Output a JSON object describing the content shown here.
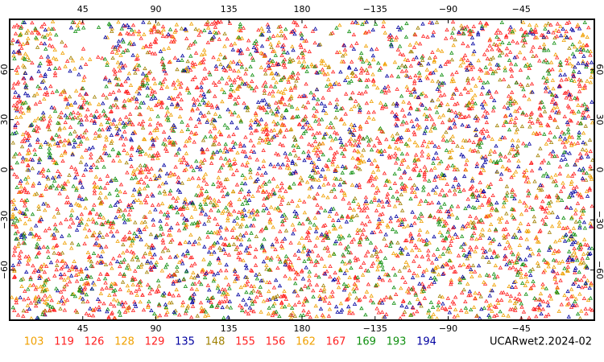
{
  "map": {
    "xlim": [
      0,
      360
    ],
    "ylim": [
      -90,
      90
    ],
    "xticks": [
      45,
      90,
      135,
      180,
      {
        "value": -135,
        "label": "−135"
      },
      {
        "value": -90,
        "label": "−90"
      },
      {
        "value": -45,
        "label": "−45"
      }
    ],
    "yticks": [
      60,
      30,
      0,
      {
        "value": -30,
        "label": "−30"
      },
      {
        "value": -60,
        "label": "−60"
      }
    ],
    "legend": [
      {
        "name": "103",
        "color": "#f0a000"
      },
      {
        "name": "119",
        "color": "#ff2020"
      },
      {
        "name": "126",
        "color": "#ff2020"
      },
      {
        "name": "128",
        "color": "#f0a000"
      },
      {
        "name": "129",
        "color": "#ff2020"
      },
      {
        "name": "135",
        "color": "#0000a0"
      },
      {
        "name": "148",
        "color": "#a08000"
      },
      {
        "name": "155",
        "color": "#ff2020"
      },
      {
        "name": "156",
        "color": "#ff2020"
      },
      {
        "name": "162",
        "color": "#f0a000"
      },
      {
        "name": "167",
        "color": "#ff2020"
      },
      {
        "name": "169",
        "color": "#109010"
      },
      {
        "name": "193",
        "color": "#109010"
      },
      {
        "name": "194",
        "color": "#0000a0"
      }
    ],
    "title": "UCARwet2.2024-02"
  }
}
